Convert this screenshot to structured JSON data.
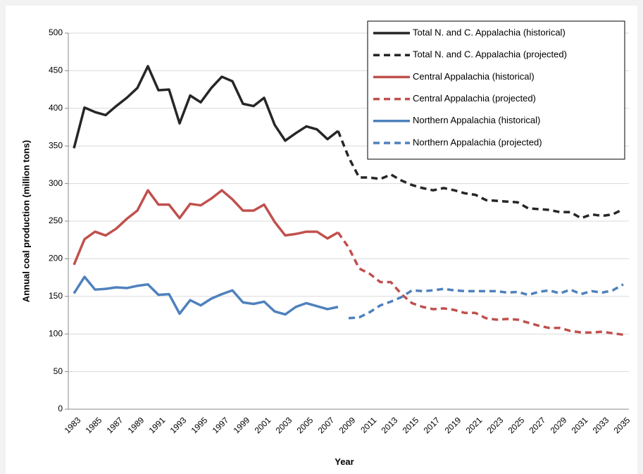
{
  "chart_data": {
    "type": "line",
    "y_label": "Annual coal production (million tons)",
    "x_label": "Year",
    "categories": [
      "1983",
      null,
      "1985",
      null,
      "1987",
      null,
      "1989",
      null,
      "1991",
      null,
      "1993",
      null,
      "1995",
      null,
      "1997",
      null,
      "1999",
      null,
      "2001",
      null,
      "2003",
      null,
      "2005",
      null,
      "2007",
      null,
      "2009",
      null,
      "2011",
      null,
      "2013",
      null,
      "2015",
      null,
      "2017",
      null,
      "2019",
      null,
      "2021",
      null,
      "2023",
      null,
      "2025",
      null,
      "2027",
      null,
      "2029",
      null,
      "2031",
      null,
      "2033",
      null,
      "2035"
    ],
    "ylim": [
      0,
      500
    ],
    "yticks": [
      0,
      50,
      100,
      150,
      200,
      250,
      300,
      350,
      400,
      450,
      500
    ],
    "grid": true,
    "legend": "top-right",
    "series": [
      {
        "name": "Total N. and C. Appalachia (historical)",
        "color": "#262626",
        "dashed": false,
        "values": [
          347,
          401,
          395,
          391,
          403,
          414,
          427,
          456,
          424,
          425,
          380,
          417,
          408,
          427,
          442,
          436,
          406,
          403,
          414,
          378,
          357,
          367,
          376,
          372,
          359,
          370,
          null,
          null,
          null,
          null,
          null,
          null,
          null,
          null,
          null,
          null,
          null,
          null,
          null,
          null,
          null,
          null,
          null,
          null,
          null,
          null,
          null,
          null,
          null,
          null,
          null,
          null,
          null
        ]
      },
      {
        "name": "Total N. and C. Appalachia (projected)",
        "color": "#262626",
        "dashed": true,
        "values": [
          null,
          null,
          null,
          null,
          null,
          null,
          null,
          null,
          null,
          null,
          null,
          null,
          null,
          null,
          null,
          null,
          null,
          null,
          null,
          null,
          null,
          null,
          null,
          null,
          null,
          370,
          335,
          308,
          308,
          306,
          312,
          304,
          298,
          294,
          291,
          294,
          291,
          287,
          285,
          278,
          277,
          276,
          275,
          267,
          266,
          265,
          262,
          262,
          254,
          259,
          257,
          259,
          266
        ]
      },
      {
        "name": "Central Appalachia (historical)",
        "color": "#c0504d",
        "dashed": false,
        "values": [
          192,
          226,
          236,
          231,
          240,
          253,
          264,
          291,
          272,
          272,
          254,
          273,
          271,
          280,
          291,
          279,
          264,
          264,
          272,
          249,
          231,
          233,
          236,
          236,
          227,
          235,
          null,
          null,
          null,
          null,
          null,
          null,
          null,
          null,
          null,
          null,
          null,
          null,
          null,
          null,
          null,
          null,
          null,
          null,
          null,
          null,
          null,
          null,
          null,
          null,
          null,
          null,
          null
        ]
      },
      {
        "name": "Central Appalachia (projected)",
        "color": "#c0504d",
        "dashed": true,
        "values": [
          null,
          null,
          null,
          null,
          null,
          null,
          null,
          null,
          null,
          null,
          null,
          null,
          null,
          null,
          null,
          null,
          null,
          null,
          null,
          null,
          null,
          null,
          null,
          null,
          null,
          235,
          215,
          187,
          180,
          169,
          169,
          153,
          141,
          136,
          133,
          134,
          132,
          128,
          128,
          121,
          119,
          120,
          119,
          115,
          111,
          108,
          108,
          104,
          102,
          102,
          103,
          101,
          99
        ]
      },
      {
        "name": "Northern Appalachia (historical)",
        "color": "#4f81bd",
        "dashed": false,
        "values": [
          154,
          176,
          159,
          160,
          162,
          161,
          164,
          166,
          152,
          153,
          127,
          145,
          138,
          147,
          153,
          158,
          142,
          140,
          143,
          130,
          126,
          136,
          141,
          137,
          133,
          136,
          null,
          null,
          null,
          null,
          null,
          null,
          null,
          null,
          null,
          null,
          null,
          null,
          null,
          null,
          null,
          null,
          null,
          null,
          null,
          null,
          null,
          null,
          null,
          null,
          null,
          null,
          null
        ]
      },
      {
        "name": "Northern Appalachia (projected)",
        "color": "#4f81bd",
        "dashed": true,
        "values": [
          null,
          null,
          null,
          null,
          null,
          null,
          null,
          null,
          null,
          null,
          null,
          null,
          null,
          null,
          null,
          null,
          null,
          null,
          null,
          null,
          null,
          null,
          null,
          null,
          null,
          null,
          121,
          122,
          129,
          138,
          143,
          149,
          158,
          157,
          158,
          160,
          158,
          157,
          157,
          157,
          157,
          155,
          156,
          152,
          156,
          158,
          154,
          159,
          153,
          157,
          155,
          158,
          166
        ]
      }
    ]
  }
}
